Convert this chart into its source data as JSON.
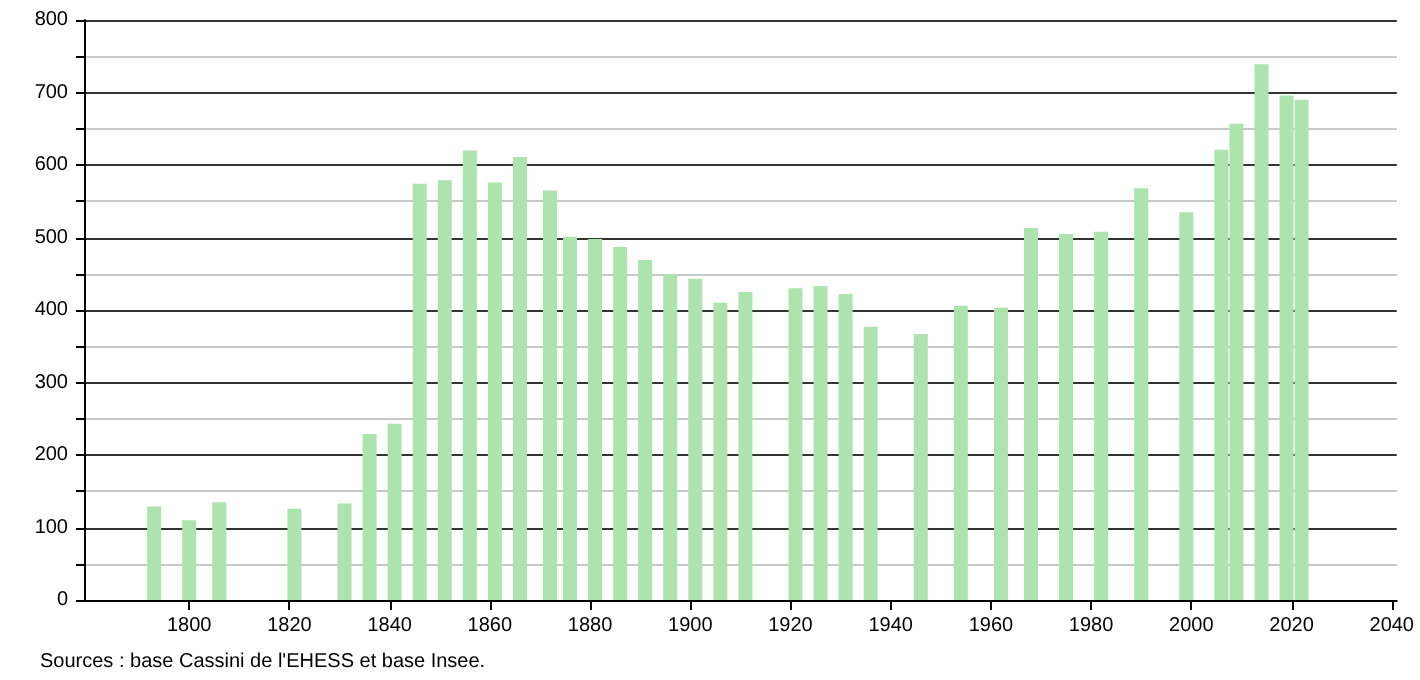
{
  "chart_data": {
    "type": "bar",
    "x": [
      1793,
      1800,
      1806,
      1821,
      1831,
      1836,
      1841,
      1846,
      1851,
      1856,
      1861,
      1866,
      1872,
      1876,
      1881,
      1886,
      1891,
      1896,
      1901,
      1906,
      1911,
      1921,
      1926,
      1931,
      1936,
      1946,
      1954,
      1962,
      1968,
      1975,
      1982,
      1990,
      1999,
      2006,
      2009,
      2014,
      2019,
      2022
    ],
    "values": [
      129,
      110,
      135,
      126,
      133,
      229,
      243,
      574,
      579,
      620,
      576,
      611,
      565,
      501,
      498,
      487,
      469,
      449,
      443,
      410,
      425,
      430,
      433,
      422,
      377,
      367,
      406,
      403,
      513,
      505,
      508,
      568,
      535,
      621,
      657,
      739,
      696,
      690
    ],
    "color": "#ade3ad",
    "xlim": [
      1779,
      2041
    ],
    "xticks": [
      1800,
      1820,
      1840,
      1860,
      1880,
      1900,
      1920,
      1940,
      1960,
      1980,
      2000,
      2020,
      2040
    ],
    "ylim": [
      0,
      800
    ],
    "yticks": [
      0,
      {
        "value": 50,
        "label": null
      },
      100,
      {
        "value": 150,
        "label": null
      },
      200,
      {
        "value": 250,
        "label": null
      },
      300,
      {
        "value": 350,
        "label": null
      },
      400,
      {
        "value": 450,
        "label": null
      },
      500,
      {
        "value": 550,
        "label": null
      },
      600,
      {
        "value": 650,
        "label": null
      },
      700,
      {
        "value": 750,
        "label": null
      },
      800
    ],
    "grid": "y",
    "annotations": [
      "Sources : base Cassini de l'EHESS et base Insee."
    ]
  }
}
